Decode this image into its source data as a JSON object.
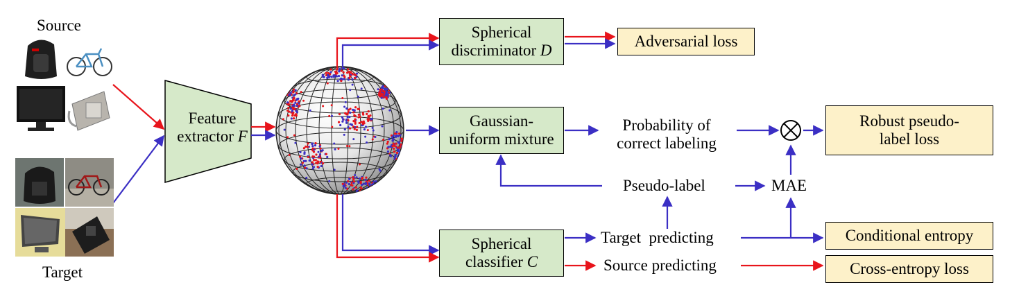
{
  "source_label": "Source",
  "target_label": "Target",
  "feature_extractor": {
    "line1": "Feature",
    "line2": "extractor",
    "var": "F"
  },
  "discriminator": {
    "line1": "Spherical",
    "line2": "discriminator",
    "var": "D"
  },
  "gum": {
    "line1": "Gaussian-",
    "line2": "uniform mixture"
  },
  "classifier": {
    "line1": "Spherical",
    "line2": "classifier",
    "var": "C"
  },
  "adversarial_loss": "Adversarial loss",
  "robust_loss": {
    "line1": "Robust pseudo-",
    "line2": "label loss"
  },
  "conditional_entropy": "Conditional entropy",
  "cross_entropy": "Cross-entropy loss",
  "probability": {
    "line1": "Probability of",
    "line2": "correct labeling"
  },
  "pseudo_label": "Pseudo-label",
  "mae": "MAE",
  "target_predicting": "Target  predicting",
  "source_predicting": "Source predicting",
  "multiply_symbol": "⊗",
  "colors": {
    "source_arrow": "#e8141b",
    "target_arrow": "#3b2fc4",
    "module_fill": "#d6e9c9",
    "loss_fill": "#fdf1c9"
  }
}
